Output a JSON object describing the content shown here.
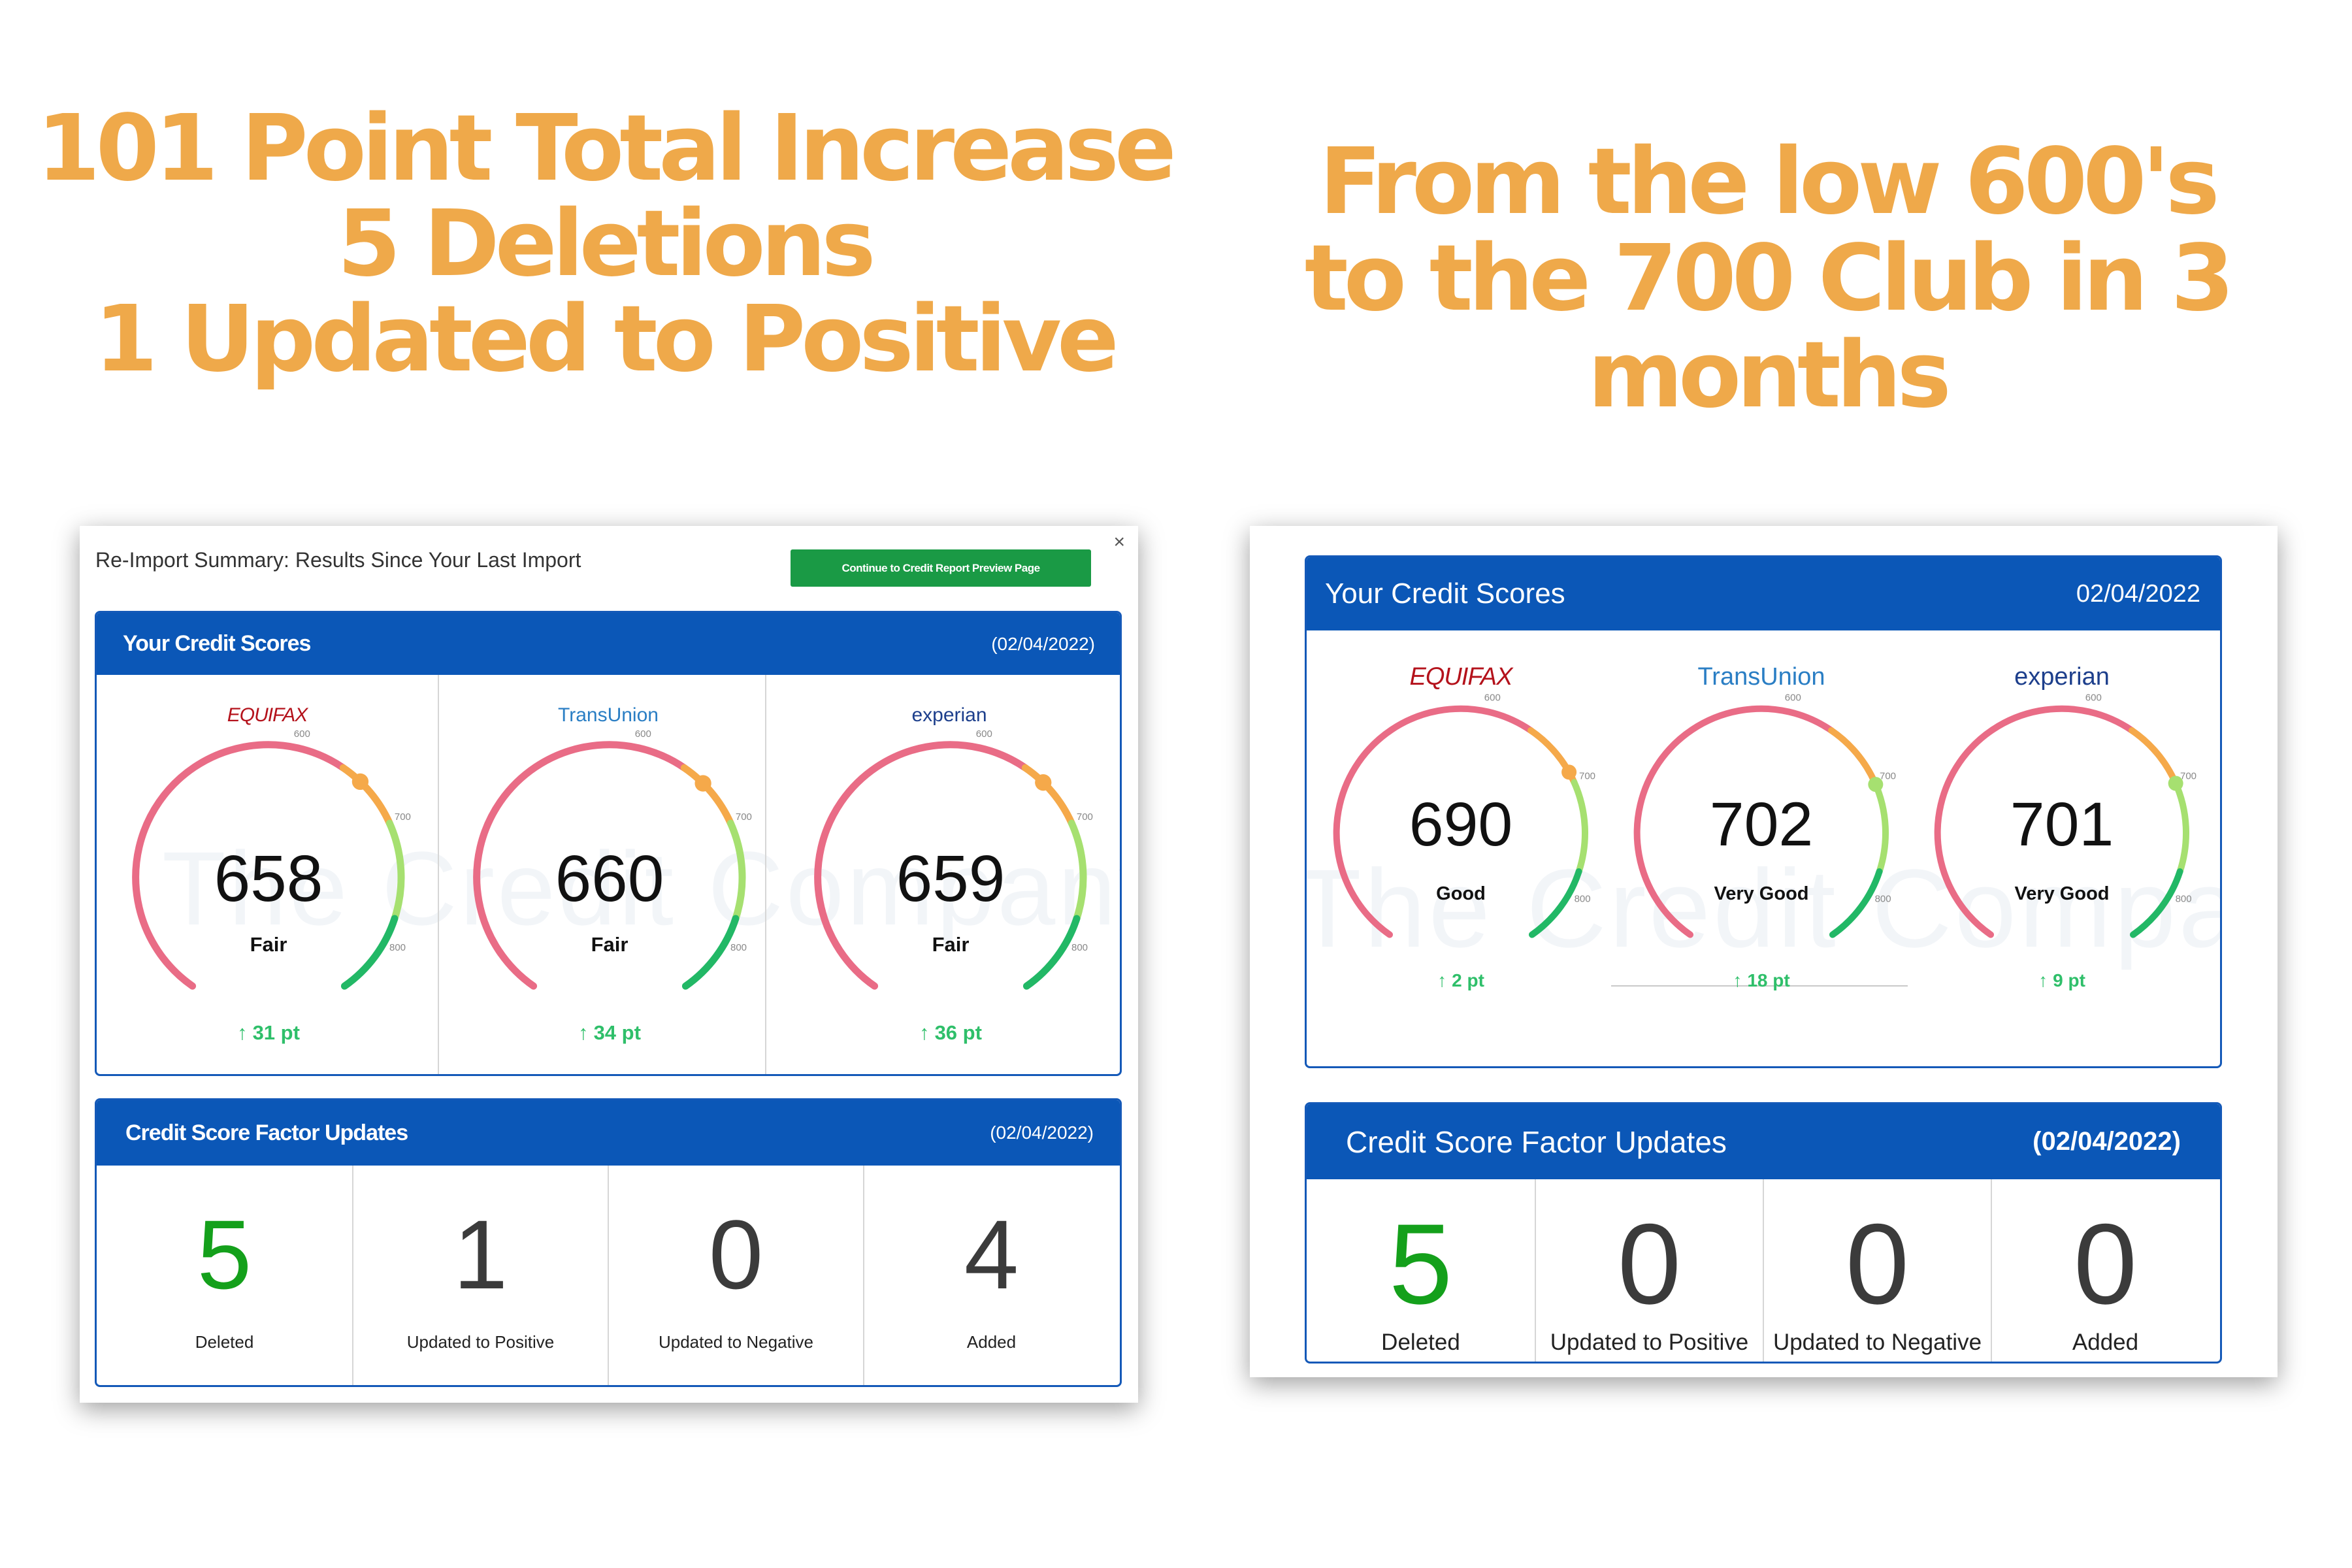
{
  "headline_left": [
    "101 Point Total Increase",
    "5 Deletions",
    "1 Updated to Positive"
  ],
  "headline_right": [
    "From the low 600's",
    "to the 700 Club in 3",
    "months"
  ],
  "colors": {
    "headline": "#efa94a",
    "header_blue": "#0b57b7",
    "continue_button": "#1a9a45",
    "increase_green": "#2fbf6a",
    "deleted_green": "#14a01b"
  },
  "watermark": "The Credit Company",
  "gauge_ticks": [
    "600",
    "700",
    "800"
  ],
  "left_panel": {
    "modal_title": "Re-Import Summary: Results Since Your Last Import",
    "continue_button": "Continue to Credit Report Preview Page",
    "close_icon": "×",
    "scores_card": {
      "title": "Your Credit Scores",
      "date": "(02/04/2022)",
      "bureaus": [
        {
          "name": "EQUIFAX",
          "score": 658,
          "score_text": "658",
          "rating": "Fair",
          "change": "31 pt"
        },
        {
          "name": "TransUnion",
          "score": 660,
          "score_text": "660",
          "rating": "Fair",
          "change": "34 pt"
        },
        {
          "name": "experian",
          "score": 659,
          "score_text": "659",
          "rating": "Fair",
          "change": "36 pt"
        }
      ]
    },
    "factors_card": {
      "title": "Credit Score Factor Updates",
      "date": "(02/04/2022)",
      "items": [
        {
          "value": "5",
          "label": "Deleted"
        },
        {
          "value": "1",
          "label": "Updated to Positive"
        },
        {
          "value": "0",
          "label": "Updated to Negative"
        },
        {
          "value": "4",
          "label": "Added"
        }
      ]
    }
  },
  "right_panel": {
    "scores_card": {
      "title": "Your Credit Scores",
      "date": "02/04/2022",
      "bureaus": [
        {
          "name": "EQUIFAX",
          "score": 690,
          "score_text": "690",
          "rating": "Good",
          "change": "2 pt"
        },
        {
          "name": "TransUnion",
          "score": 702,
          "score_text": "702",
          "rating": "Very Good",
          "change": "18 pt"
        },
        {
          "name": "experian",
          "score": 701,
          "score_text": "701",
          "rating": "Very Good",
          "change": "9 pt"
        }
      ]
    },
    "factors_card": {
      "title": "Credit Score Factor Updates",
      "date": "(02/04/2022)",
      "items": [
        {
          "value": "5",
          "label": "Deleted"
        },
        {
          "value": "0",
          "label": "Updated to Positive"
        },
        {
          "value": "0",
          "label": "Updated to Negative"
        },
        {
          "value": "0",
          "label": "Added"
        }
      ]
    }
  }
}
